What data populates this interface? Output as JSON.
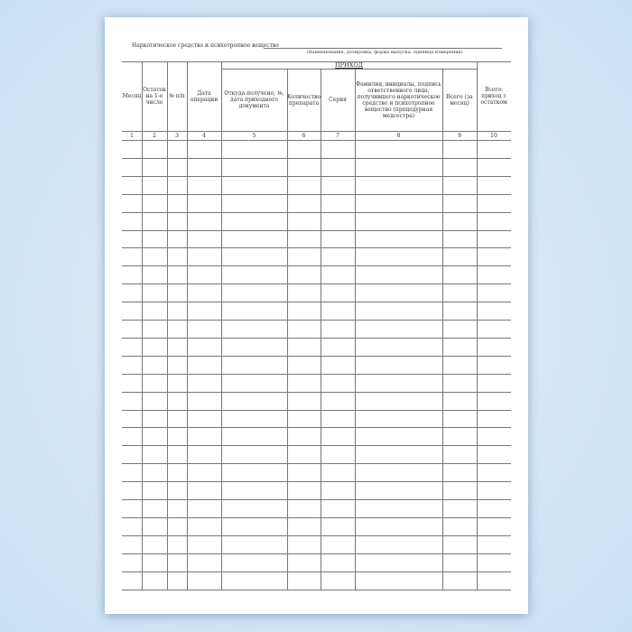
{
  "header": {
    "label": "Наркотическое средство и психотропное вещество",
    "hint": "(Наименование, дозировка, форма выпуска, единица измерения)"
  },
  "table": {
    "group_label": "ПРИХОД",
    "columns": [
      {
        "label": "Месяц",
        "num": "1"
      },
      {
        "label": "Остаток на 1-е число",
        "num": "2"
      },
      {
        "label": "№ п/п",
        "num": "3"
      },
      {
        "label": "Дата операции",
        "num": "4"
      },
      {
        "label": "Откуда получено, №, дата приходного документа",
        "num": "5"
      },
      {
        "label": "Количество препарата",
        "num": "6"
      },
      {
        "label": "Серия",
        "num": "7"
      },
      {
        "label": "Фамилия, инициалы, подпись ответственного лица, получившего наркотическое средство и психотропное вещество (процедурная медсестра)",
        "num": "8"
      },
      {
        "label": "Всего (за месяц)",
        "num": "9"
      },
      {
        "label": "Всего: приход с остатком",
        "num": "10"
      }
    ]
  }
}
